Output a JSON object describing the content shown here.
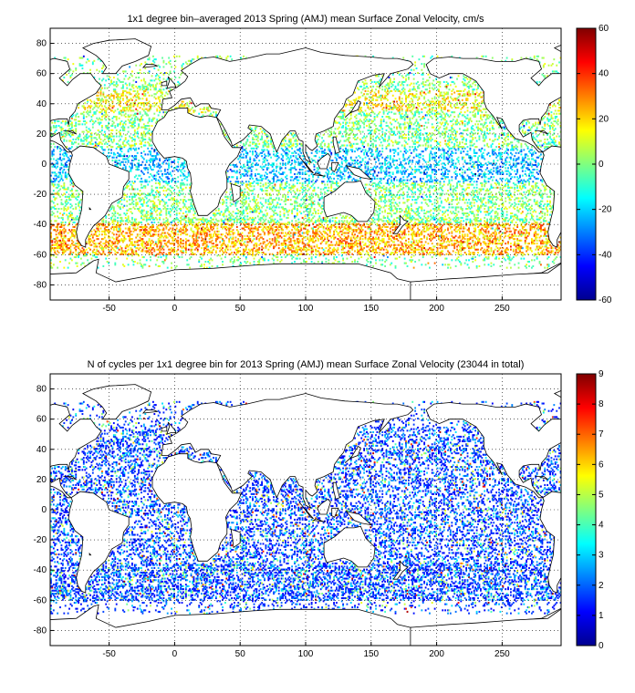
{
  "panels": [
    {
      "title": "1x1 degree bin–averaged 2013 Spring (AMJ) mean Surface Zonal Velocity, cm/s",
      "xticks": [
        -50,
        0,
        50,
        100,
        150,
        200,
        250
      ],
      "yticks": [
        80,
        60,
        40,
        20,
        0,
        -20,
        -40,
        -60,
        -80
      ],
      "xlim": [
        -95,
        295
      ],
      "ylim": [
        -90,
        90
      ],
      "colorbar": {
        "min": -60,
        "max": 60,
        "ticks": [
          60,
          40,
          20,
          0,
          -20,
          -40,
          -60
        ]
      },
      "colormap": "jet"
    },
    {
      "title": "N of cycles per 1x1 degree bin for 2013 Spring (AMJ) mean Surface Zonal Velocity (23044 in total)",
      "xticks": [
        -50,
        0,
        50,
        100,
        150,
        200,
        250
      ],
      "yticks": [
        80,
        60,
        40,
        20,
        0,
        -20,
        -40,
        -60,
        -80
      ],
      "xlim": [
        -95,
        295
      ],
      "ylim": [
        -90,
        90
      ],
      "colorbar": {
        "min": 0,
        "max": 9,
        "ticks": [
          9,
          8,
          7,
          6,
          5,
          4,
          3,
          2,
          1,
          0
        ]
      },
      "colormap": "jet"
    }
  ]
}
